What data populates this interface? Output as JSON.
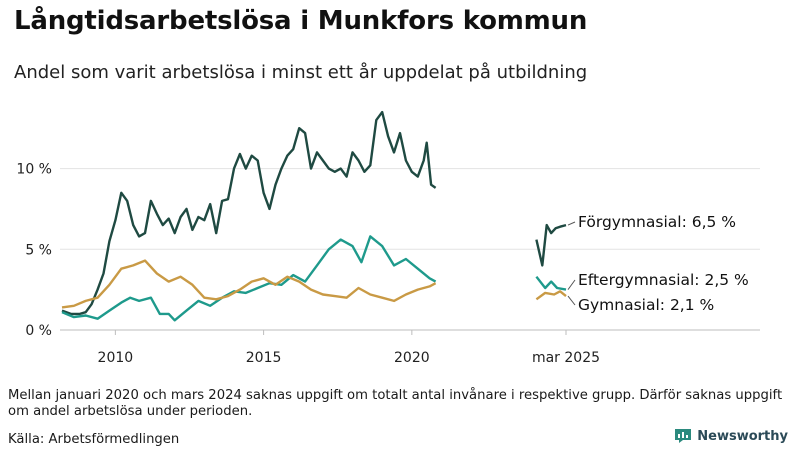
{
  "title": "Långtidsarbetslösa i Munkfors kommun",
  "subtitle": "Andel som varit arbetslösa i minst ett år uppdelat på utbildning",
  "note": "Mellan januari 2020 och mars 2024 saknas uppgift om totalt antal invånare i respektive grupp. Därför saknas uppgift om andel arbetslösa under perioden.",
  "source": "Källa: Arbetsförmedlingen",
  "brand": "Newsworthy",
  "brand_icon": "bar-chart-icon",
  "chart_data": {
    "type": "line",
    "title": "Långtidsarbetslösa i Munkfors kommun",
    "subtitle": "Andel som varit arbetslösa i minst ett år uppdelat på utbildning",
    "y_unit": "%",
    "ylim": [
      0,
      14
    ],
    "y_ticks": [
      {
        "value": 0,
        "label": "0 %"
      },
      {
        "value": 5,
        "label": "5 %"
      },
      {
        "value": 10,
        "label": "10 %"
      }
    ],
    "x_ticks": [
      {
        "value": 2010,
        "label": "2010"
      },
      {
        "value": 2015,
        "label": "2015"
      },
      {
        "value": 2020,
        "label": "2020"
      },
      {
        "value": 2025.2,
        "label": "mar 2025"
      }
    ],
    "grid": "horizontal",
    "legend": "end-labels",
    "series": [
      {
        "name": "Förgymnasial",
        "end_label": "Förgymnasial: 6,5 %",
        "color": "#1f4a42",
        "segments": [
          [
            [
              2008.2,
              1.2
            ],
            [
              2008.5,
              1.0
            ],
            [
              2008.8,
              1.0
            ],
            [
              2009.0,
              1.1
            ],
            [
              2009.2,
              1.6
            ],
            [
              2009.4,
              2.5
            ],
            [
              2009.6,
              3.5
            ],
            [
              2009.8,
              5.5
            ],
            [
              2010.0,
              6.8
            ],
            [
              2010.2,
              8.5
            ],
            [
              2010.4,
              8.0
            ],
            [
              2010.6,
              6.5
            ],
            [
              2010.8,
              5.8
            ],
            [
              2011.0,
              6.0
            ],
            [
              2011.2,
              8.0
            ],
            [
              2011.4,
              7.2
            ],
            [
              2011.6,
              6.5
            ],
            [
              2011.8,
              6.9
            ],
            [
              2012.0,
              6.0
            ],
            [
              2012.2,
              7.0
            ],
            [
              2012.4,
              7.5
            ],
            [
              2012.6,
              6.2
            ],
            [
              2012.8,
              7.0
            ],
            [
              2013.0,
              6.8
            ],
            [
              2013.2,
              7.8
            ],
            [
              2013.4,
              6.0
            ],
            [
              2013.6,
              8.0
            ],
            [
              2013.8,
              8.1
            ],
            [
              2014.0,
              10.0
            ],
            [
              2014.2,
              10.9
            ],
            [
              2014.4,
              10.0
            ],
            [
              2014.6,
              10.8
            ],
            [
              2014.8,
              10.5
            ],
            [
              2015.0,
              8.5
            ],
            [
              2015.2,
              7.5
            ],
            [
              2015.4,
              9.0
            ],
            [
              2015.6,
              10.0
            ],
            [
              2015.8,
              10.8
            ],
            [
              2016.0,
              11.2
            ],
            [
              2016.2,
              12.5
            ],
            [
              2016.4,
              12.2
            ],
            [
              2016.6,
              10.0
            ],
            [
              2016.8,
              11.0
            ],
            [
              2017.0,
              10.5
            ],
            [
              2017.2,
              10.0
            ],
            [
              2017.4,
              9.8
            ],
            [
              2017.6,
              10.0
            ],
            [
              2017.8,
              9.5
            ],
            [
              2018.0,
              11.0
            ],
            [
              2018.2,
              10.5
            ],
            [
              2018.4,
              9.8
            ],
            [
              2018.6,
              10.2
            ],
            [
              2018.8,
              13.0
            ],
            [
              2019.0,
              13.5
            ],
            [
              2019.2,
              12.0
            ],
            [
              2019.4,
              11.0
            ],
            [
              2019.6,
              12.2
            ],
            [
              2019.8,
              10.5
            ],
            [
              2020.0,
              9.8
            ],
            [
              2020.2,
              9.5
            ],
            [
              2020.4,
              10.5
            ],
            [
              2020.5,
              11.6
            ],
            [
              2020.65,
              9.0
            ],
            [
              2020.8,
              8.8
            ]
          ],
          [
            [
              2024.2,
              5.6
            ],
            [
              2024.4,
              4.0
            ],
            [
              2024.55,
              6.5
            ],
            [
              2024.7,
              6.0
            ],
            [
              2024.85,
              6.3
            ],
            [
              2025.0,
              6.4
            ],
            [
              2025.2,
              6.5
            ]
          ]
        ]
      },
      {
        "name": "Eftergymnasial",
        "end_label": "Eftergymnasial: 2,5 %",
        "color": "#1e9a8c",
        "segments": [
          [
            [
              2008.2,
              1.1
            ],
            [
              2008.6,
              0.8
            ],
            [
              2009.0,
              0.9
            ],
            [
              2009.4,
              0.7
            ],
            [
              2009.8,
              1.2
            ],
            [
              2010.2,
              1.7
            ],
            [
              2010.5,
              2.0
            ],
            [
              2010.8,
              1.8
            ],
            [
              2011.2,
              2.0
            ],
            [
              2011.5,
              1.0
            ],
            [
              2011.8,
              1.0
            ],
            [
              2012.0,
              0.6
            ],
            [
              2012.4,
              1.2
            ],
            [
              2012.8,
              1.8
            ],
            [
              2013.2,
              1.5
            ],
            [
              2013.6,
              2.0
            ],
            [
              2014.0,
              2.4
            ],
            [
              2014.4,
              2.3
            ],
            [
              2014.8,
              2.6
            ],
            [
              2015.2,
              2.9
            ],
            [
              2015.6,
              2.8
            ],
            [
              2016.0,
              3.4
            ],
            [
              2016.4,
              3.0
            ],
            [
              2016.8,
              4.0
            ],
            [
              2017.2,
              5.0
            ],
            [
              2017.6,
              5.6
            ],
            [
              2018.0,
              5.2
            ],
            [
              2018.3,
              4.2
            ],
            [
              2018.6,
              5.8
            ],
            [
              2019.0,
              5.2
            ],
            [
              2019.4,
              4.0
            ],
            [
              2019.8,
              4.4
            ],
            [
              2020.2,
              3.8
            ],
            [
              2020.6,
              3.2
            ],
            [
              2020.8,
              3.0
            ]
          ],
          [
            [
              2024.2,
              3.3
            ],
            [
              2024.5,
              2.6
            ],
            [
              2024.7,
              3.0
            ],
            [
              2024.9,
              2.6
            ],
            [
              2025.2,
              2.5
            ]
          ]
        ]
      },
      {
        "name": "Gymnasial",
        "end_label": "Gymnasial: 2,1 %",
        "color": "#c99a45",
        "segments": [
          [
            [
              2008.2,
              1.4
            ],
            [
              2008.6,
              1.5
            ],
            [
              2009.0,
              1.8
            ],
            [
              2009.4,
              2.0
            ],
            [
              2009.8,
              2.8
            ],
            [
              2010.2,
              3.8
            ],
            [
              2010.6,
              4.0
            ],
            [
              2011.0,
              4.3
            ],
            [
              2011.4,
              3.5
            ],
            [
              2011.8,
              3.0
            ],
            [
              2012.2,
              3.3
            ],
            [
              2012.6,
              2.8
            ],
            [
              2013.0,
              2.0
            ],
            [
              2013.4,
              1.9
            ],
            [
              2013.8,
              2.1
            ],
            [
              2014.2,
              2.5
            ],
            [
              2014.6,
              3.0
            ],
            [
              2015.0,
              3.2
            ],
            [
              2015.4,
              2.8
            ],
            [
              2015.8,
              3.3
            ],
            [
              2016.2,
              3.0
            ],
            [
              2016.6,
              2.5
            ],
            [
              2017.0,
              2.2
            ],
            [
              2017.4,
              2.1
            ],
            [
              2017.8,
              2.0
            ],
            [
              2018.2,
              2.6
            ],
            [
              2018.6,
              2.2
            ],
            [
              2019.0,
              2.0
            ],
            [
              2019.4,
              1.8
            ],
            [
              2019.8,
              2.2
            ],
            [
              2020.2,
              2.5
            ],
            [
              2020.6,
              2.7
            ],
            [
              2020.8,
              2.9
            ]
          ],
          [
            [
              2024.2,
              1.9
            ],
            [
              2024.5,
              2.3
            ],
            [
              2024.8,
              2.2
            ],
            [
              2025.0,
              2.4
            ],
            [
              2025.2,
              2.1
            ]
          ]
        ]
      }
    ]
  }
}
